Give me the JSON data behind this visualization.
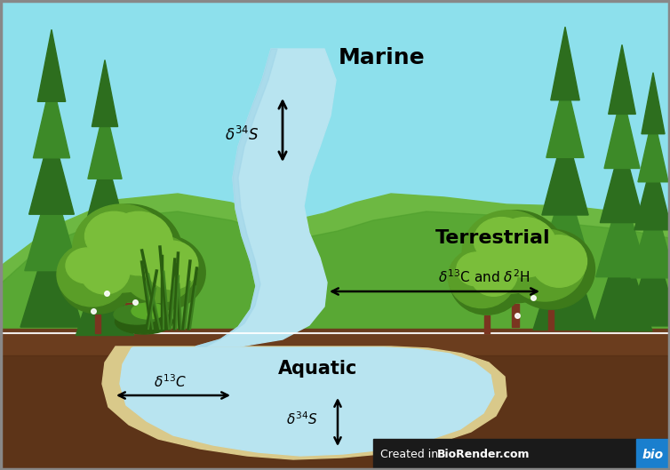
{
  "sky_color": "#8de0ec",
  "hill_light_color": "#6db842",
  "hill_dark_color": "#4d9e2c",
  "hill_shadow_color": "#3d8020",
  "soil_color": "#6b3d1e",
  "soil_dark_color": "#4a2810",
  "water_color": "#b8e4f0",
  "sand_color": "#d9c98a",
  "trunk_color": "#7a3520",
  "foliage_dark": "#2d6e1e",
  "foliage_mid": "#3d8a28",
  "foliage_light": "#5aaa2a",
  "foliage_bright": "#7ac840",
  "deciduous_dark": "#3d7a1a",
  "deciduous_mid": "#5a9e28",
  "deciduous_light": "#7abe3a",
  "grass_dark": "#2a5e10",
  "grass_mid": "#3d8020",
  "grass_light": "#5aaa28",
  "title_marine": "Marine",
  "title_terrestrial": "Terrestrial",
  "title_aquatic": "Aquatic",
  "label_delta34S_marine": "$\\delta^{34}$S",
  "label_delta13C_aquatic": "$\\delta^{13}$C",
  "label_delta34S_aquatic": "$\\delta^{34}$S",
  "label_delta13C_delta2H": "$\\delta^{13}$C and $\\delta^{2}$H",
  "watermark_text": "Created in ",
  "watermark_bold": "BioRender.com",
  "watermark_bio": "bio",
  "watermark_bg": "#1a1a1a",
  "watermark_bio_bg": "#1a7fce",
  "border_color": "#888888",
  "figsize": [
    7.54,
    5.29
  ],
  "dpi": 100
}
